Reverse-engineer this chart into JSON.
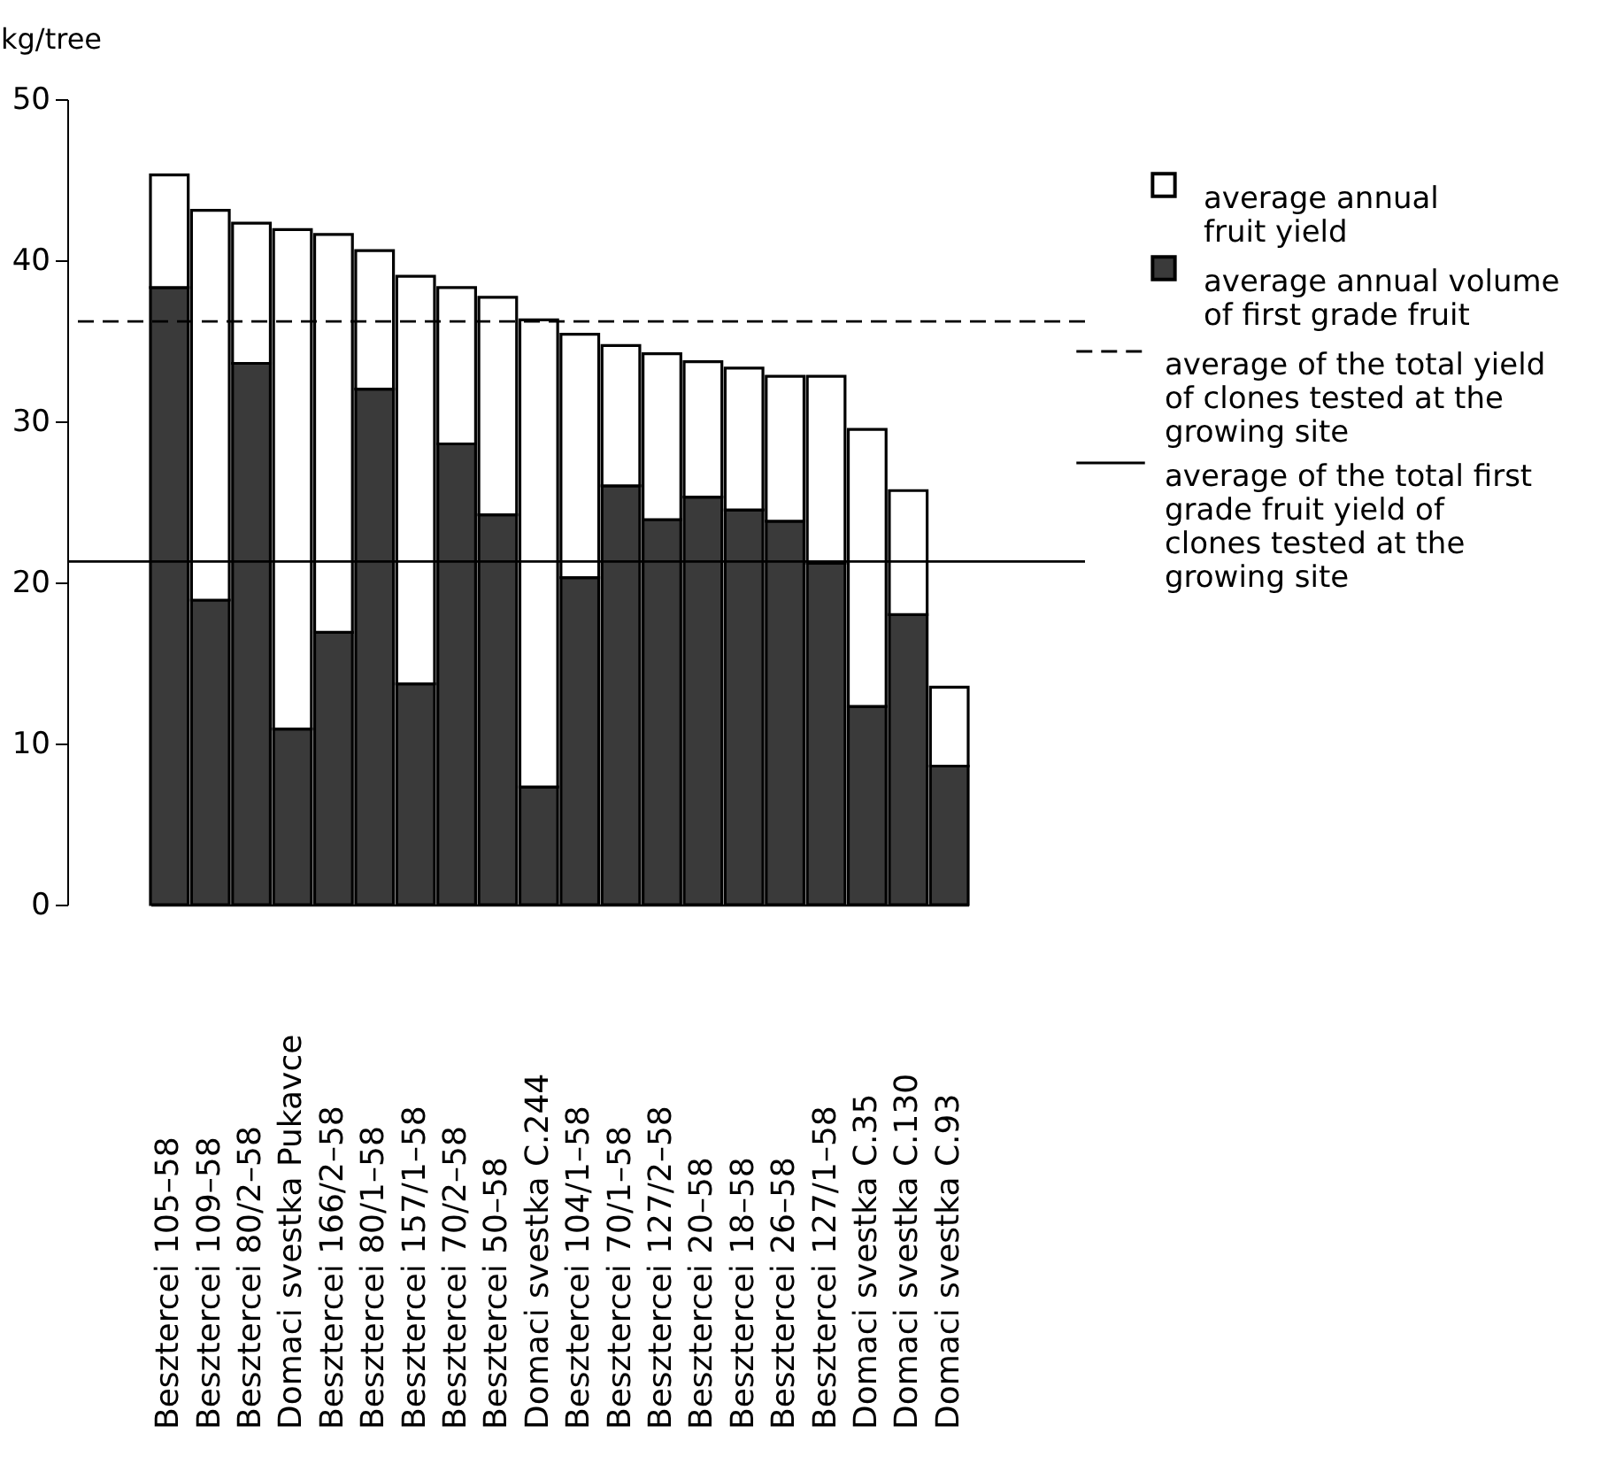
{
  "chart_data": {
    "type": "bar",
    "stacked": true,
    "ylabel": "kg/tree",
    "categories": [
      "Besztercei 105–58",
      "Besztercei 109–58",
      "Besztercei 80/2–58",
      "Domaci svestka Pukavce",
      "Besztercei 166/2–58",
      "Besztercei 80/1–58",
      "Besztercei 157/1–58",
      "Besztercei 70/2–58",
      "Besztercei 50–58",
      "Domaci svestka C.244",
      "Besztercei 104/1–58",
      "Besztercei 70/1–58",
      "Besztercei 127/2–58",
      "Besztercei 20–58",
      "Besztercei 18–58",
      "Besztercei 26–58",
      "Besztercei 127/1–58",
      "Domaci svestka C.35",
      "Domaci svestka C.130",
      "Domaci svestka C.93"
    ],
    "series": [
      {
        "name": "average annual volume\nof first grade fruit",
        "color": "#3a3a3a",
        "values": [
          38.3,
          18.9,
          33.6,
          10.9,
          16.9,
          32.0,
          13.7,
          28.6,
          24.2,
          7.3,
          20.3,
          26.0,
          23.9,
          25.3,
          24.5,
          23.8,
          21.2,
          12.3,
          18.0,
          8.6
        ]
      },
      {
        "name": "average annual\nfruit yield",
        "color": "#ffffff",
        "values": [
          7.0,
          24.2,
          8.7,
          31.0,
          24.7,
          8.6,
          25.3,
          9.7,
          13.5,
          29.0,
          15.1,
          8.7,
          10.3,
          8.4,
          8.8,
          9.0,
          11.6,
          17.2,
          7.7,
          4.9
        ]
      }
    ],
    "ylim": [
      0,
      50
    ],
    "yticks": [
      0,
      10,
      20,
      30,
      40,
      50
    ],
    "ref_lines": [
      {
        "axis": "y",
        "value": 36.2,
        "label": "average of the total yield\nof clones tested at the\ngrowing site",
        "line_style": "dashed",
        "color": "#000000"
      },
      {
        "axis": "y",
        "value": 21.3,
        "label": "average of the total first\ngrade fruit yield of\nclones tested at the\ngrowing site",
        "line_style": "solid",
        "color": "#000000"
      }
    ],
    "grid": false,
    "legend": "top right"
  }
}
